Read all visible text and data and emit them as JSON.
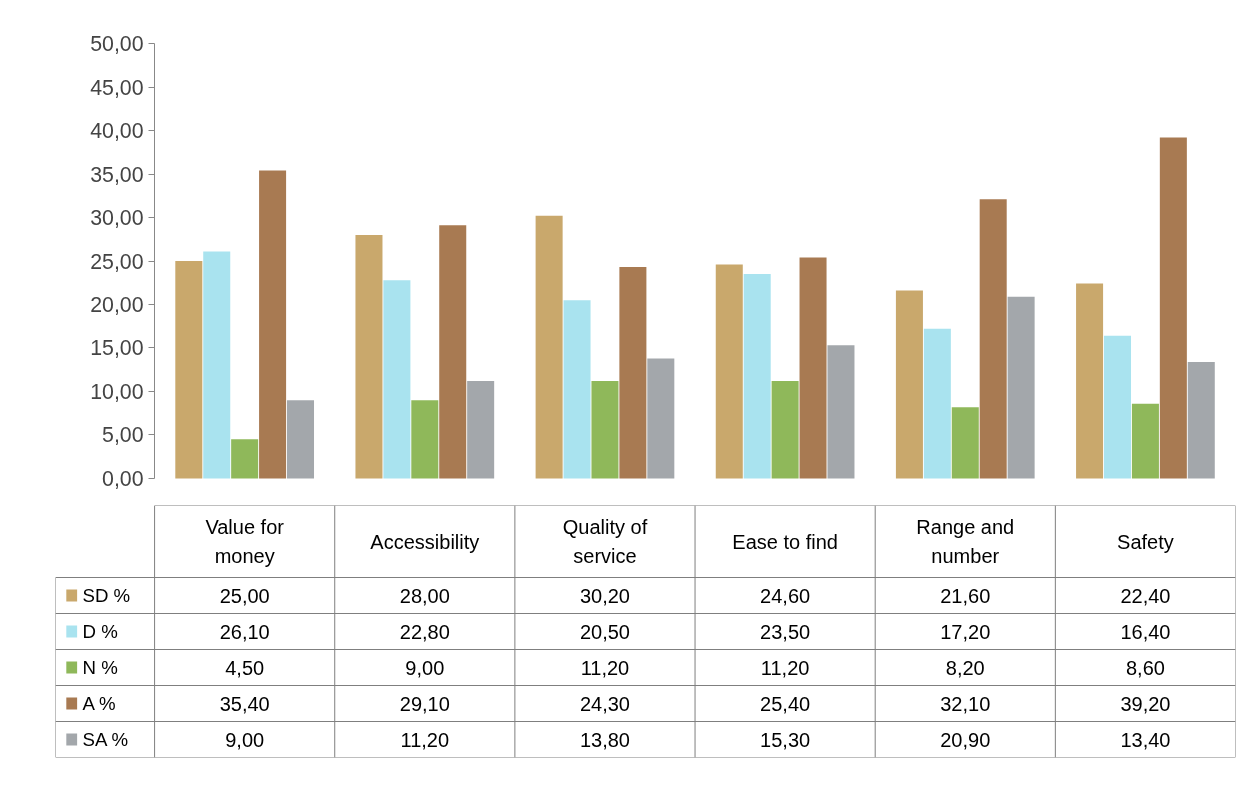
{
  "chart_data": {
    "type": "bar",
    "categories": [
      "Value for money",
      "Accessibility",
      "Quality of service",
      "Ease to find",
      "Range and number",
      "Safety"
    ],
    "series": [
      {
        "name": "SD %",
        "color": "#c9a86c",
        "values": [
          25.0,
          28.0,
          30.2,
          24.6,
          21.6,
          22.4
        ],
        "value_labels": [
          "25,00",
          "28,00",
          "30,20",
          "24,60",
          "21,60",
          "22,40"
        ]
      },
      {
        "name": "D %",
        "color": "#a9e3ef",
        "values": [
          26.1,
          22.8,
          20.5,
          23.5,
          17.2,
          16.4
        ],
        "value_labels": [
          "26,10",
          "22,80",
          "20,50",
          "23,50",
          "17,20",
          "16,40"
        ]
      },
      {
        "name": "N %",
        "color": "#8fb85a",
        "values": [
          4.5,
          9.0,
          11.2,
          11.2,
          8.2,
          8.6
        ],
        "value_labels": [
          "4,50",
          "9,00",
          "11,20",
          "11,20",
          "8,20",
          "8,60"
        ]
      },
      {
        "name": "A %",
        "color": "#a87a52",
        "values": [
          35.4,
          29.1,
          24.3,
          25.4,
          32.1,
          39.2
        ],
        "value_labels": [
          "35,40",
          "29,10",
          "24,30",
          "25,40",
          "32,10",
          "39,20"
        ]
      },
      {
        "name": "SA %",
        "color": "#a3a7ab",
        "values": [
          9.0,
          11.2,
          13.8,
          15.3,
          20.9,
          13.4
        ],
        "value_labels": [
          "9,00",
          "11,20",
          "13,80",
          "15,30",
          "20,90",
          "13,40"
        ]
      }
    ],
    "ylim": [
      0,
      50
    ],
    "yticks": [
      {
        "value": 0,
        "label": "0,00"
      },
      {
        "value": 5,
        "label": "5,00"
      },
      {
        "value": 10,
        "label": "10,00"
      },
      {
        "value": 15,
        "label": "15,00"
      },
      {
        "value": 20,
        "label": "20,00"
      },
      {
        "value": 25,
        "label": "25,00"
      },
      {
        "value": 30,
        "label": "30,00"
      },
      {
        "value": 35,
        "label": "35,00"
      },
      {
        "value": 40,
        "label": "40,00"
      },
      {
        "value": 45,
        "label": "45,00"
      },
      {
        "value": 50,
        "label": "50,00"
      }
    ],
    "legend": "bottom"
  }
}
